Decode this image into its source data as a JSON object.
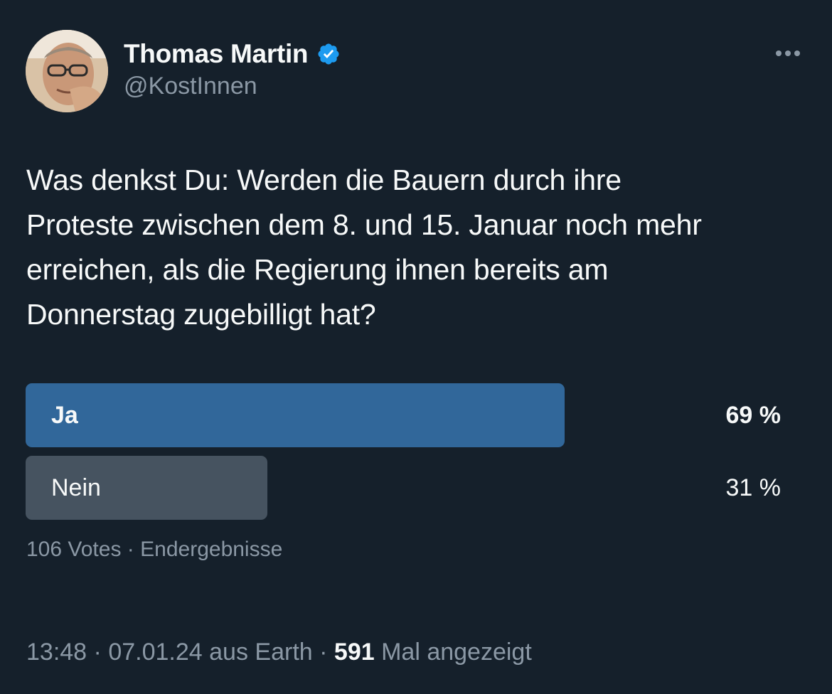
{
  "author": {
    "display_name": "Thomas Martin",
    "handle": "@KostInnen",
    "verified": true,
    "avatar_icon": "profile-photo"
  },
  "tweet": {
    "text_lines": [
      "Was denkst Du: Werden die Bauern durch ihre",
      "Proteste zwischen dem 8. und 15. Januar noch mehr",
      "erreichen, als die Regierung ihnen bereits am",
      "Donnerstag zugebilligt hat?"
    ]
  },
  "poll": {
    "options": [
      {
        "label": "Ja",
        "percent_label": "69 %",
        "percent": 69,
        "winner": true
      },
      {
        "label": "Nein",
        "percent_label": "31 %",
        "percent": 31,
        "winner": false
      }
    ],
    "votes": "106 Votes",
    "separator": "·",
    "status": "Endergebnisse"
  },
  "meta": {
    "time": "13:48",
    "date": "07.01.24",
    "source": "aus Earth",
    "views_count": "591",
    "views_label": "Mal angezeigt",
    "separator": "·"
  },
  "colors": {
    "background": "#15202b",
    "winner_bar": "#31679a",
    "other_bar": "#465360",
    "secondary_text": "#8b98a5",
    "verified_badge": "#1d9bf0"
  },
  "icons": {
    "more": "more-options-icon",
    "verified": "verified-badge-icon"
  }
}
